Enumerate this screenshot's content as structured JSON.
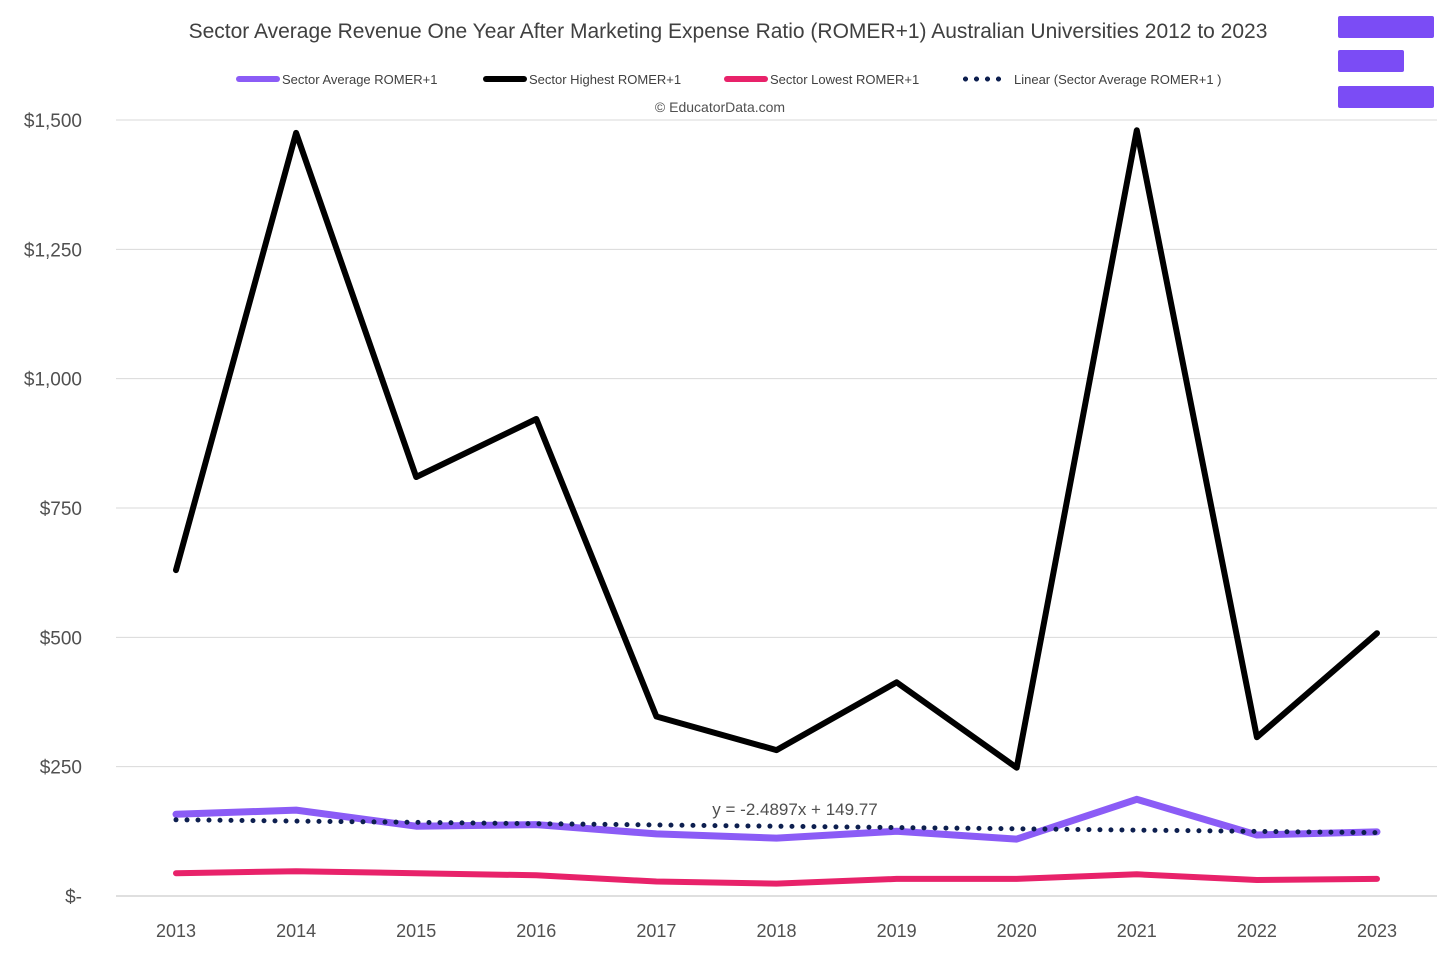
{
  "title": "Sector Average Revenue One Year After Marketing Expense Ratio (ROMER+1) Australian Universities 2012 to 2023",
  "copyright": "© EducatorData.com",
  "brand_color": "#7b4cf5",
  "legend": [
    {
      "label": "Sector Average ROMER+1",
      "color": "#8b5cf6",
      "style": "solid"
    },
    {
      "label": "Sector Highest ROMER+1",
      "color": "#000000",
      "style": "solid"
    },
    {
      "label": "Sector Lowest ROMER+1",
      "color": "#e8226a",
      "style": "solid"
    },
    {
      "label": "Linear (Sector Average ROMER+1 )",
      "color": "#0d1f4f",
      "style": "dotted"
    }
  ],
  "chart_data": {
    "type": "line",
    "title": "Sector Average Revenue One Year After Marketing Expense Ratio (ROMER+1) Australian Universities 2012 to 2023",
    "xlabel": "",
    "ylabel": "",
    "categories": [
      "2013",
      "2014",
      "2015",
      "2016",
      "2017",
      "2018",
      "2019",
      "2020",
      "2021",
      "2022",
      "2023"
    ],
    "ylim": [
      0,
      1500
    ],
    "yticks": [
      0,
      250,
      500,
      750,
      1000,
      1250,
      1500
    ],
    "ytick_labels": [
      "$-",
      "$250",
      "$500",
      "$750",
      "$1,000",
      "$1,250",
      "$1,500"
    ],
    "grid": true,
    "legend_position": "top",
    "series": [
      {
        "name": "Sector Average ROMER+1",
        "color": "#8b5cf6",
        "values": [
          158,
          166,
          135,
          138,
          120,
          112,
          125,
          110,
          187,
          118,
          124
        ]
      },
      {
        "name": "Sector Highest ROMER+1",
        "color": "#000000",
        "values": [
          630,
          1475,
          810,
          922,
          347,
          282,
          413,
          248,
          1480,
          307,
          508
        ]
      },
      {
        "name": "Sector Lowest ROMER+1",
        "color": "#e8226a",
        "values": [
          44,
          48,
          44,
          40,
          28,
          24,
          33,
          33,
          42,
          31,
          33
        ]
      }
    ],
    "trendline": {
      "name": "Linear (Sector Average ROMER+1 )",
      "color": "#0d1f4f",
      "style": "dotted",
      "slope": -2.4897,
      "intercept": 149.77,
      "equation": "y = -2.4897x + 149.77"
    }
  }
}
